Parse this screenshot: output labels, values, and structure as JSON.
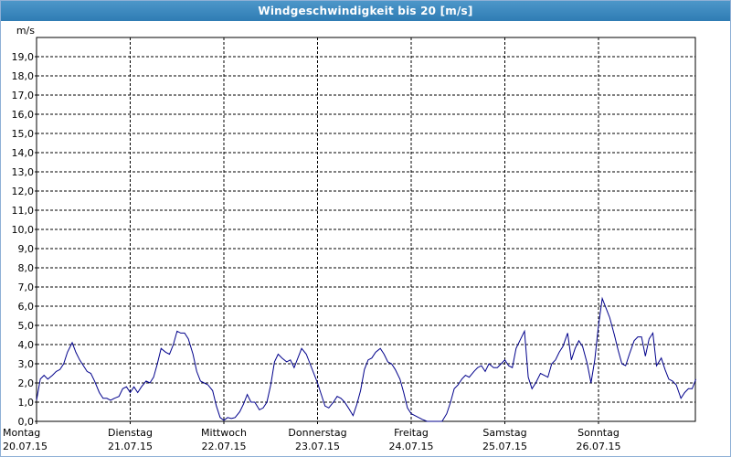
{
  "window": {
    "title": "Windgeschwindigkeit bis 20 [m/s]"
  },
  "chart_data": {
    "type": "line",
    "title": "Windgeschwindigkeit bis 20 [m/s]",
    "ylabel": "m/s",
    "xlabel": "",
    "ylim": [
      0,
      20
    ],
    "xlim": [
      0,
      7
    ],
    "grid": true,
    "line_color": "#00008b",
    "y_ticks": [
      "0,0",
      "1,0",
      "2,0",
      "3,0",
      "4,0",
      "5,0",
      "6,0",
      "7,0",
      "8,0",
      "9,0",
      "10,0",
      "11,0",
      "12,0",
      "13,0",
      "14,0",
      "15,0",
      "16,0",
      "17,0",
      "18,0",
      "19,0"
    ],
    "days": [
      {
        "weekday": "Montag",
        "date": "20.07.15"
      },
      {
        "weekday": "Dienstag",
        "date": "21.07.15"
      },
      {
        "weekday": "Mittwoch",
        "date": "22.07.15"
      },
      {
        "weekday": "Donnerstag",
        "date": "23.07.15"
      },
      {
        "weekday": "Freitag",
        "date": "24.07.15"
      },
      {
        "weekday": "Samstag",
        "date": "25.07.15"
      },
      {
        "weekday": "Sonntag",
        "date": "26.07.15"
      }
    ],
    "series": [
      {
        "values": [
          [
            0.0,
            1.1
          ],
          [
            0.04,
            2.2
          ],
          [
            0.08,
            2.4
          ],
          [
            0.12,
            2.2
          ],
          [
            0.17,
            2.4
          ],
          [
            0.21,
            2.6
          ],
          [
            0.25,
            2.7
          ],
          [
            0.29,
            3.0
          ],
          [
            0.33,
            3.6
          ],
          [
            0.38,
            4.1
          ],
          [
            0.42,
            3.6
          ],
          [
            0.46,
            3.2
          ],
          [
            0.5,
            2.9
          ],
          [
            0.54,
            2.6
          ],
          [
            0.58,
            2.5
          ],
          [
            0.62,
            2.1
          ],
          [
            0.67,
            1.5
          ],
          [
            0.71,
            1.2
          ],
          [
            0.75,
            1.2
          ],
          [
            0.79,
            1.1
          ],
          [
            0.83,
            1.2
          ],
          [
            0.88,
            1.3
          ],
          [
            0.92,
            1.7
          ],
          [
            0.96,
            1.8
          ],
          [
            1.0,
            1.5
          ],
          [
            1.04,
            1.8
          ],
          [
            1.08,
            1.5
          ],
          [
            1.12,
            1.8
          ],
          [
            1.17,
            2.1
          ],
          [
            1.21,
            2.0
          ],
          [
            1.25,
            2.3
          ],
          [
            1.29,
            3.0
          ],
          [
            1.33,
            3.8
          ],
          [
            1.38,
            3.6
          ],
          [
            1.42,
            3.5
          ],
          [
            1.46,
            4.0
          ],
          [
            1.5,
            4.7
          ],
          [
            1.54,
            4.6
          ],
          [
            1.58,
            4.6
          ],
          [
            1.62,
            4.3
          ],
          [
            1.67,
            3.5
          ],
          [
            1.71,
            2.6
          ],
          [
            1.75,
            2.1
          ],
          [
            1.79,
            2.0
          ],
          [
            1.83,
            1.9
          ],
          [
            1.88,
            1.6
          ],
          [
            1.92,
            0.8
          ],
          [
            1.96,
            0.2
          ],
          [
            2.0,
            0.05
          ],
          [
            2.04,
            0.2
          ],
          [
            2.08,
            0.15
          ],
          [
            2.12,
            0.2
          ],
          [
            2.17,
            0.5
          ],
          [
            2.21,
            0.9
          ],
          [
            2.25,
            1.4
          ],
          [
            2.29,
            1.0
          ],
          [
            2.33,
            1.0
          ],
          [
            2.38,
            0.6
          ],
          [
            2.42,
            0.7
          ],
          [
            2.46,
            1.0
          ],
          [
            2.5,
            1.9
          ],
          [
            2.54,
            3.1
          ],
          [
            2.58,
            3.5
          ],
          [
            2.62,
            3.3
          ],
          [
            2.67,
            3.1
          ],
          [
            2.71,
            3.2
          ],
          [
            2.75,
            2.8
          ],
          [
            2.79,
            3.3
          ],
          [
            2.83,
            3.8
          ],
          [
            2.88,
            3.5
          ],
          [
            2.92,
            3.0
          ],
          [
            2.96,
            2.5
          ],
          [
            3.0,
            2.0
          ],
          [
            3.04,
            1.4
          ],
          [
            3.08,
            0.8
          ],
          [
            3.12,
            0.7
          ],
          [
            3.17,
            1.0
          ],
          [
            3.21,
            1.3
          ],
          [
            3.25,
            1.2
          ],
          [
            3.29,
            1.0
          ],
          [
            3.33,
            0.7
          ],
          [
            3.38,
            0.3
          ],
          [
            3.42,
            0.9
          ],
          [
            3.46,
            1.6
          ],
          [
            3.5,
            2.7
          ],
          [
            3.54,
            3.2
          ],
          [
            3.58,
            3.3
          ],
          [
            3.62,
            3.6
          ],
          [
            3.67,
            3.8
          ],
          [
            3.71,
            3.5
          ],
          [
            3.75,
            3.1
          ],
          [
            3.79,
            3.0
          ],
          [
            3.83,
            2.7
          ],
          [
            3.88,
            2.2
          ],
          [
            3.92,
            1.5
          ],
          [
            3.96,
            0.7
          ],
          [
            4.0,
            0.4
          ],
          [
            4.04,
            0.3
          ],
          [
            4.08,
            0.2
          ],
          [
            4.12,
            0.1
          ],
          [
            4.17,
            0.0
          ],
          [
            4.21,
            0.0
          ],
          [
            4.25,
            0.0
          ],
          [
            4.29,
            0.0
          ],
          [
            4.33,
            0.0
          ],
          [
            4.38,
            0.4
          ],
          [
            4.42,
            1.0
          ],
          [
            4.46,
            1.7
          ],
          [
            4.5,
            1.9
          ],
          [
            4.54,
            2.2
          ],
          [
            4.58,
            2.4
          ],
          [
            4.62,
            2.3
          ],
          [
            4.67,
            2.6
          ],
          [
            4.71,
            2.8
          ],
          [
            4.75,
            2.9
          ],
          [
            4.79,
            2.6
          ],
          [
            4.83,
            3.0
          ],
          [
            4.88,
            2.8
          ],
          [
            4.92,
            2.8
          ],
          [
            4.96,
            3.0
          ],
          [
            5.0,
            3.2
          ],
          [
            5.04,
            2.9
          ],
          [
            5.08,
            2.8
          ],
          [
            5.12,
            3.8
          ],
          [
            5.17,
            4.3
          ],
          [
            5.21,
            4.7
          ],
          [
            5.25,
            2.3
          ],
          [
            5.29,
            1.7
          ],
          [
            5.33,
            2.0
          ],
          [
            5.38,
            2.5
          ],
          [
            5.42,
            2.4
          ],
          [
            5.46,
            2.3
          ],
          [
            5.5,
            3.0
          ],
          [
            5.54,
            3.2
          ],
          [
            5.58,
            3.6
          ],
          [
            5.62,
            3.9
          ],
          [
            5.67,
            4.6
          ],
          [
            5.71,
            3.2
          ],
          [
            5.75,
            3.8
          ],
          [
            5.79,
            4.2
          ],
          [
            5.83,
            3.9
          ],
          [
            5.88,
            3.0
          ],
          [
            5.92,
            2.0
          ],
          [
            5.96,
            3.2
          ],
          [
            6.0,
            5.0
          ],
          [
            6.04,
            6.4
          ],
          [
            6.08,
            5.9
          ],
          [
            6.12,
            5.4
          ],
          [
            6.17,
            4.5
          ],
          [
            6.21,
            3.7
          ],
          [
            6.25,
            3.0
          ],
          [
            6.29,
            2.9
          ],
          [
            6.33,
            3.5
          ],
          [
            6.38,
            4.2
          ],
          [
            6.42,
            4.4
          ],
          [
            6.46,
            4.4
          ],
          [
            6.5,
            3.4
          ],
          [
            6.54,
            4.3
          ],
          [
            6.58,
            4.6
          ],
          [
            6.62,
            2.9
          ],
          [
            6.67,
            3.3
          ],
          [
            6.71,
            2.7
          ],
          [
            6.75,
            2.2
          ],
          [
            6.79,
            2.1
          ],
          [
            6.83,
            1.9
          ],
          [
            6.88,
            1.2
          ],
          [
            6.92,
            1.5
          ],
          [
            6.96,
            1.7
          ],
          [
            7.0,
            1.7
          ],
          [
            7.04,
            2.2
          ]
        ]
      }
    ]
  }
}
